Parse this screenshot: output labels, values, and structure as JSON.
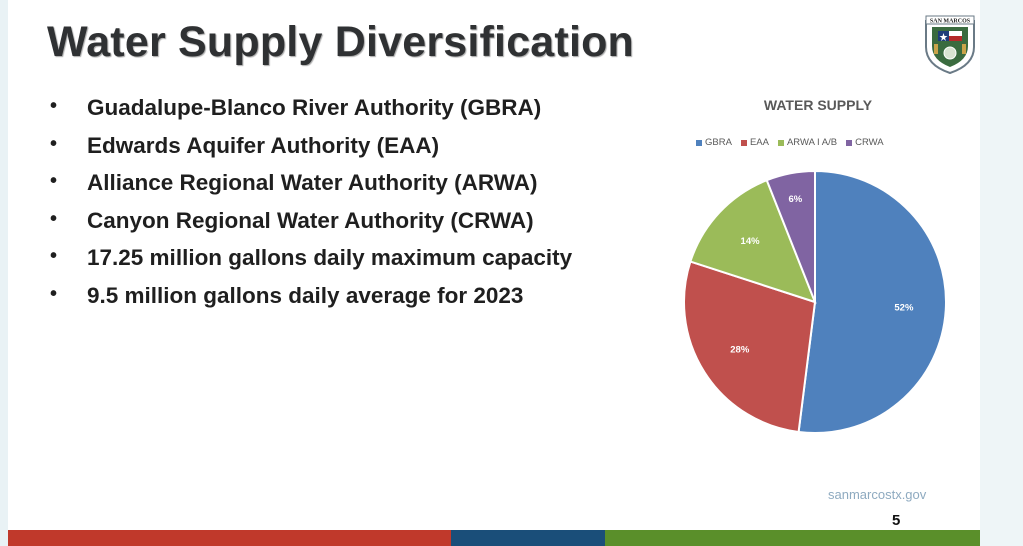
{
  "slide": {
    "title": "Water Supply Diversification",
    "bullets": [
      "Guadalupe-Blanco River Authority (GBRA)",
      "Edwards Aquifer Authority (EAA)",
      "Alliance Regional Water Authority (ARWA)",
      "Canyon Regional Water Authority (CRWA)",
      "17.25 million gallons daily maximum capacity",
      "9.5 million gallons daily average for 2023"
    ],
    "url": "sanmarcostx.gov",
    "page_number": "5",
    "logo_text": "SAN MARCOS"
  },
  "chart_data": {
    "type": "pie",
    "title": "WATER SUPPLY",
    "legend_position": "top",
    "categories": [
      "GBRA",
      "EAA",
      "ARWA I A/B",
      "CRWA"
    ],
    "values": [
      52,
      28,
      14,
      6
    ],
    "labels": [
      "52%",
      "28%",
      "14%",
      "6%"
    ],
    "colors": [
      "#4f81bd",
      "#c0504d",
      "#9bbb59",
      "#8064a2"
    ]
  },
  "colors": {
    "bar_red": "#c0392b",
    "bar_blue": "#1a4e79",
    "bar_green": "#5a8f2a"
  }
}
